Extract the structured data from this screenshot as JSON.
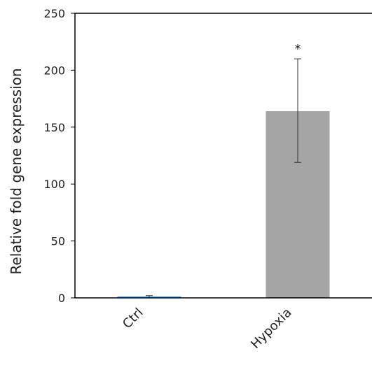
{
  "chart_data": {
    "type": "bar",
    "title": "",
    "xlabel": "",
    "ylabel": "Relative fold gene expression",
    "ylim": [
      0,
      250
    ],
    "yticks": [
      0,
      50,
      100,
      150,
      200,
      250
    ],
    "grid": false,
    "categories": [
      "Ctrl",
      "Hypoxia"
    ],
    "values": [
      1,
      164
    ],
    "error_bars": [
      {
        "low": 0,
        "high": 2
      },
      {
        "low": 119,
        "high": 210
      }
    ],
    "bar_colors": [
      "#5b9bd5",
      "#a5a5a5"
    ],
    "annotations": [
      {
        "category": "Hypoxia",
        "text": "*"
      }
    ]
  }
}
